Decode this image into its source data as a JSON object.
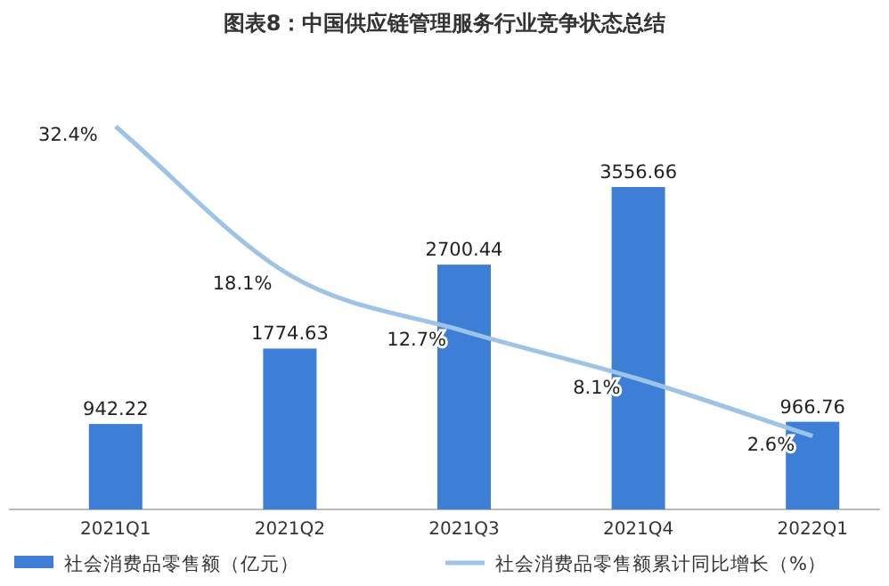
{
  "chart_data": {
    "type": "bar",
    "title": "图表8：中国供应链管理服务行业竞争状态总结",
    "categories": [
      "2021Q1",
      "2021Q2",
      "2021Q3",
      "2021Q4",
      "2022Q1"
    ],
    "series": [
      {
        "name": "社会消费品零售额（亿元）",
        "color": "#3d7fd6",
        "values": [
          942.22,
          1774.63,
          2700.44,
          3556.66,
          966.76
        ],
        "value_labels": [
          "942.22",
          "1774.63",
          "2700.44",
          "3556.66",
          "966.76"
        ]
      },
      {
        "name": "社会消费品零售额累计同比增长（%）",
        "type": "line",
        "axis": "y2",
        "color": "#9dc3e6",
        "marker": "none",
        "values": [
          32.4,
          18.1,
          12.7,
          8.1,
          2.6
        ],
        "value_labels": [
          "32.4%",
          "18.1%",
          "12.7%",
          "8.1%",
          "2.6%"
        ]
      }
    ],
    "legend": "bottom",
    "grid": false
  }
}
